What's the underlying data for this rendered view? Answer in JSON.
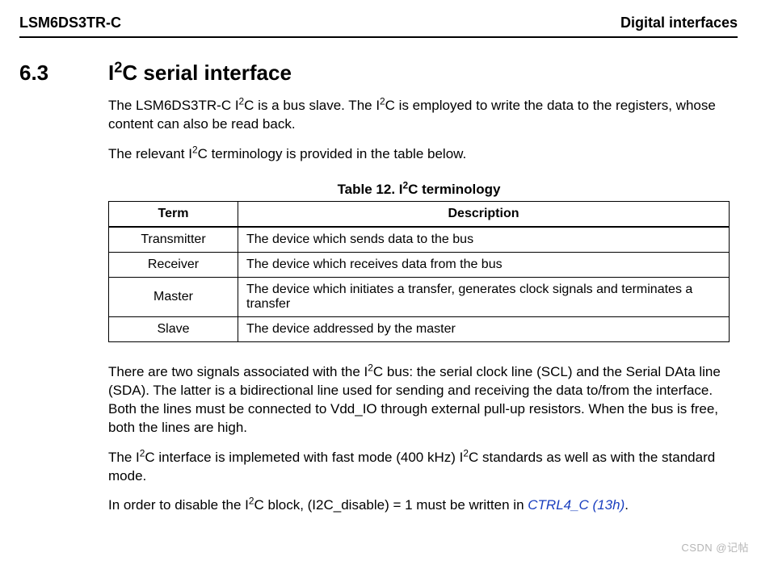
{
  "header": {
    "left": "LSM6DS3TR-C",
    "right": "Digital interfaces"
  },
  "section": {
    "number": "6.3",
    "title_pre": "I",
    "title_sup": "2",
    "title_post": "C serial interface"
  },
  "para1": {
    "t1": "The LSM6DS3TR-C I",
    "sup1": "2",
    "t2": "C is a bus slave. The I",
    "sup2": "2",
    "t3": "C is employed to write the data to the registers, whose content can also be read back."
  },
  "para2": {
    "t1": "The relevant I",
    "sup1": "2",
    "t2": "C terminology is provided in the table below."
  },
  "table": {
    "caption_pre": "Table 12. I",
    "caption_sup": "2",
    "caption_post": "C terminology",
    "head_term": "Term",
    "head_desc": "Description",
    "rows": [
      {
        "term": "Transmitter",
        "desc": "The device which sends data to the bus"
      },
      {
        "term": "Receiver",
        "desc": "The device which receives data from the bus"
      },
      {
        "term": "Master",
        "desc": "The device which initiates a transfer, generates clock signals and terminates a transfer"
      },
      {
        "term": "Slave",
        "desc": "The device addressed by the master"
      }
    ]
  },
  "para3": {
    "t1": "There are two signals associated with the I",
    "sup1": "2",
    "t2": "C bus: the serial clock line (SCL) and the Serial DAta line (SDA). The latter is a bidirectional line used for sending and receiving the data to/from the interface. Both the lines must be connected to Vdd_IO through external pull-up resistors. When the bus is free, both the lines are high."
  },
  "para4": {
    "t1": "The I",
    "sup1": "2",
    "t2": "C interface is implemeted with fast mode (400 kHz) I",
    "sup2": "2",
    "t3": "C standards as well as with the standard mode."
  },
  "para5": {
    "t1": "In order to disable the I",
    "sup1": "2",
    "t2": "C block, (I2C_disable) = 1 must be written in ",
    "link": "CTRL4_C (13h)",
    "t3": "."
  },
  "watermark": "CSDN @记帖"
}
